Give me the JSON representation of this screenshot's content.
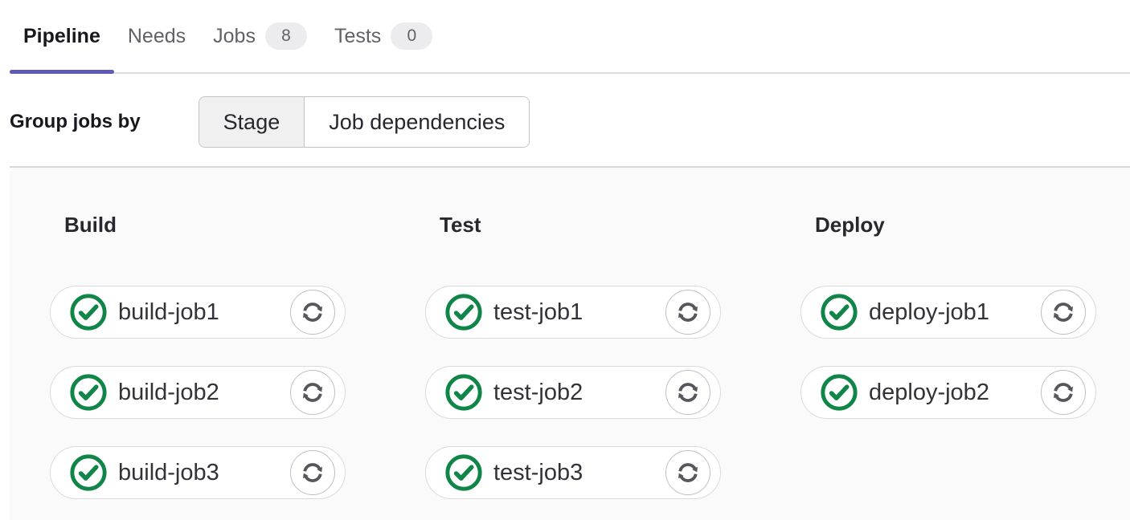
{
  "tabs": {
    "items": [
      {
        "label": "Pipeline",
        "active": true
      },
      {
        "label": "Needs",
        "active": false
      },
      {
        "label": "Jobs",
        "badge": "8",
        "active": false
      },
      {
        "label": "Tests",
        "badge": "0",
        "active": false
      }
    ]
  },
  "group_by": {
    "label": "Group jobs by",
    "options": [
      {
        "label": "Stage",
        "selected": true
      },
      {
        "label": "Job dependencies",
        "selected": false
      }
    ]
  },
  "pipeline": {
    "stages": [
      {
        "name": "Build",
        "jobs": [
          {
            "name": "build-job1",
            "status": "success",
            "action": "retry"
          },
          {
            "name": "build-job2",
            "status": "success",
            "action": "retry"
          },
          {
            "name": "build-job3",
            "status": "success",
            "action": "retry"
          }
        ]
      },
      {
        "name": "Test",
        "jobs": [
          {
            "name": "test-job1",
            "status": "success",
            "action": "retry"
          },
          {
            "name": "test-job2",
            "status": "success",
            "action": "retry"
          },
          {
            "name": "test-job3",
            "status": "success",
            "action": "retry"
          }
        ]
      },
      {
        "name": "Deploy",
        "jobs": [
          {
            "name": "deploy-job1",
            "status": "success",
            "action": "retry"
          },
          {
            "name": "deploy-job2",
            "status": "success",
            "action": "retry"
          }
        ]
      }
    ]
  },
  "colors": {
    "active_tab_indicator": "#5e5bb8",
    "success_green": "#108548",
    "retry_icon_gray": "#57565c",
    "section_background": "#fafafa"
  },
  "icons": {
    "status": "status-success-check-icon",
    "action": "retry-icon"
  }
}
